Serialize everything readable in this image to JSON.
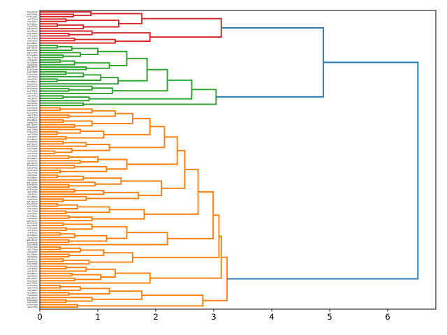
{
  "figure": {
    "kind": "matplotlib-style dendrogram plot",
    "background": "#ffffff",
    "title": ""
  },
  "chart_data": {
    "type": "dendrogram",
    "orientation": "leaves-left-root-right",
    "title": "",
    "xlabel": "",
    "ylabel": "",
    "grid": false,
    "legend": null,
    "x_axis": {
      "ticks": [
        0,
        1,
        2,
        3,
        4,
        5,
        6
      ],
      "lim": [
        0,
        6.83
      ]
    },
    "leaf_count": 124,
    "leaf_labels": {
      "legible": false,
      "note": "124 tiny leaf labels rendered along the left edge; text is too small to read in the source image",
      "placeholder_patterns_illegible": [
        "b2a-91kd0",
        "xq0-3345b",
        "m71-kc29s",
        "a03-77fhq",
        "r9d-4102c",
        "kk2-08ban",
        "t5e-6019x",
        "qv8-23mz7"
      ]
    },
    "link_color_above_threshold": "#1f77b4",
    "color_threshold_approx": 4.56,
    "clusters": [
      {
        "name": "cluster-red",
        "color": "#d62728",
        "leaves": 14,
        "root_height": 3.13
      },
      {
        "name": "cluster-green",
        "color": "#2ca02c",
        "leaves": 26,
        "root_height": 3.04
      },
      {
        "name": "cluster-orange",
        "color": "#ff7f0e",
        "leaves": 84,
        "root_height": 3.23
      }
    ],
    "top_merges": [
      {
        "joins": [
          "cluster-red",
          "cluster-green"
        ],
        "height": 4.89
      },
      {
        "joins": [
          "red+green",
          "cluster-orange"
        ],
        "height": 6.52
      }
    ],
    "tree_format": "node = [merge_height, child_a, child_b, optional_cluster_color]; leaf = 0; heights estimated from plot axis",
    "tree": [
      6.52,
      [
        4.89,
        [
          3.13,
          [
            1.76,
            [
              0.88,
              0,
              [
                0.58,
                0,
                0
              ]
            ],
            [
              1.36,
              [
                0.45,
                0,
                0
              ],
              [
                0.75,
                [
                  0.3,
                  0,
                  0
                ],
                0
              ]
            ]
          ],
          [
            1.9,
            [
              0.9,
              0,
              [
                0.5,
                0,
                0
              ]
            ],
            [
              1.3,
              [
                0.6,
                0,
                0
              ],
              0
            ]
          ],
          "#d62728"
        ],
        [
          3.04,
          [
            2.62,
            [
              2.2,
              [
                1.85,
                [
                  1.5,
                  [
                    1.0,
                    [
                      0.55,
                      [
                        0.3,
                        0,
                        0
                      ],
                      0
                    ],
                    [
                      0.7,
                      0,
                      [
                        0.4,
                        0,
                        0
                      ]
                    ]
                  ],
                  [
                    1.2,
                    [
                      0.6,
                      [
                        0.35,
                        0,
                        0
                      ],
                      0
                    ],
                    [
                      0.8,
                      0,
                      0
                    ]
                  ]
                ],
                [
                  1.35,
                  [
                    1.05,
                    [
                      0.75,
                      [
                        0.45,
                        0,
                        0
                      ],
                      0
                    ],
                    [
                      0.3,
                      0,
                      0
                    ]
                  ],
                  0
                ]
              ],
              [
                1.25,
                [
                  0.9,
                  0,
                  [
                    0.5,
                    0,
                    0
                  ]
                ],
                0
              ]
            ],
            [
              0.85,
              [
                0.4,
                0,
                0
              ],
              0
            ]
          ],
          [
            0.75,
            0,
            0
          ],
          "#2ca02c"
        ]
      ],
      [
        3.23,
        [
          3.13,
          [
            3.09,
            [
              2.99,
              [
                2.73,
                [
                  2.5,
                  [
                    2.37,
                    [
                      2.15,
                      [
                        1.9,
                        [
                          1.6,
                          [
                            1.3,
                            [
                              0.9,
                              [
                                0.35,
                                0,
                                0
                              ],
                              0
                            ],
                            [
                              0.5,
                              0,
                              0
                            ]
                          ],
                          [
                            0.9,
                            [
                              0.4,
                              0,
                              0
                            ],
                            [
                              0.6,
                              0,
                              0
                            ]
                          ]
                        ],
                        [
                          1.1,
                          [
                            0.7,
                            0,
                            [
                              0.3,
                              0,
                              0
                            ]
                          ],
                          [
                            0.45,
                            0,
                            0
                          ]
                        ]
                      ],
                      [
                        1.2,
                        [
                          0.8,
                          [
                            0.4,
                            0,
                            0
                          ],
                          0
                        ],
                        [
                          0.55,
                          0,
                          [
                            0.25,
                            0,
                            0
                          ]
                        ]
                      ]
                    ],
                    [
                      1.5,
                      [
                        1.0,
                        [
                          0.5,
                          0,
                          0
                        ],
                        [
                          0.7,
                          0,
                          0
                        ]
                      ],
                      [
                        1.15,
                        [
                          0.6,
                          0,
                          0
                        ],
                        [
                          0.35,
                          0,
                          0
                        ]
                      ]
                    ]
                  ],
                  [
                    2.1,
                    [
                      1.4,
                      [
                        0.75,
                        [
                          0.3,
                          0,
                          0
                        ],
                        0
                      ],
                      [
                        0.95,
                        0,
                        [
                          0.5,
                          0,
                          0
                        ]
                      ]
                    ],
                    [
                      1.7,
                      [
                        1.1,
                        [
                          0.6,
                          0,
                          0
                        ],
                        0
                      ],
                      [
                        0.8,
                        0,
                        [
                          0.4,
                          0,
                          0
                        ]
                      ]
                    ]
                  ]
                ],
                [
                  1.8,
                  [
                    1.2,
                    [
                      0.65,
                      [
                        0.3,
                        0,
                        0
                      ],
                      0
                    ],
                    [
                      0.45,
                      0,
                      0
                    ]
                  ],
                  [
                    0.9,
                    [
                      0.5,
                      0,
                      0
                    ],
                    0
                  ]
                ]
              ],
              [
                2.2,
                [
                  1.5,
                  [
                    0.9,
                    [
                      0.4,
                      0,
                      0
                    ],
                    [
                      0.45,
                      0,
                      0
                    ]
                  ],
                  [
                    1.15,
                    [
                      0.6,
                      [
                        0.35,
                        0,
                        0
                      ],
                      0
                    ],
                    [
                      0.5,
                      0,
                      0
                    ]
                  ]
                ],
                0
              ]
            ],
            [
              1.6,
              [
                1.1,
                [
                  0.7,
                  [
                    0.35,
                    0,
                    0
                  ],
                  0
                ],
                [
                  0.5,
                  0,
                  0
                ]
              ],
              [
                0.85,
                [
                  0.4,
                  0,
                  0
                ],
                0
              ]
            ]
          ],
          [
            1.9,
            [
              1.3,
              [
                0.8,
                [
                  0.45,
                  0,
                  0
                ],
                0
              ],
              [
                1.05,
                [
                  0.55,
                  0,
                  0
                ],
                [
                  0.6,
                  0,
                  0
                ]
              ]
            ],
            0
          ]
        ],
        [
          2.81,
          [
            1.76,
            [
              1.2,
              [
                0.7,
                [
                  0.35,
                  0,
                  0
                ],
                0
              ],
              [
                0.5,
                0,
                0
              ]
            ],
            [
              0.9,
              0,
              [
                0.45,
                0,
                0
              ]
            ]
          ],
          [
            0.65,
            0,
            0
          ]
        ],
        "#ff7f0e"
      ]
    ]
  }
}
